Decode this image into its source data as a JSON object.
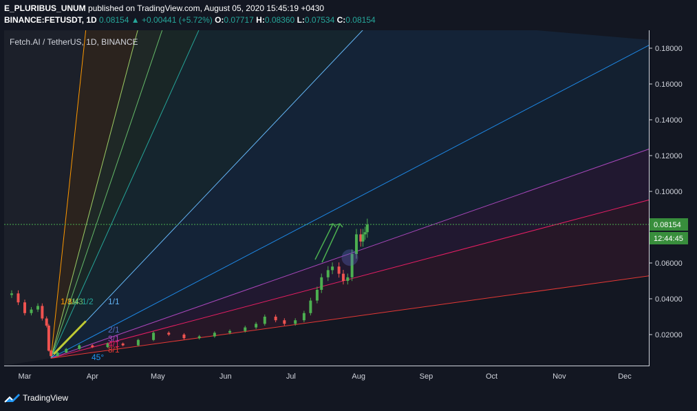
{
  "header": {
    "author": "E_PLURIBUS_UNUM",
    "published_text": "published on TradingView.com, August 05, 2020 15:45:19 +0430",
    "symbol": "BINANCE:FETUSDT, 1D",
    "last": "0.08154",
    "change": "+0.00441 (+5.72%)",
    "change_arrow": "▲",
    "o_label": "O:",
    "o": "0.07717",
    "h_label": "H:",
    "h": "0.08360",
    "l_label": "L:",
    "l": "0.07534",
    "c_label": "C:",
    "c": "0.08154"
  },
  "chart_label": "Fetch.AI / TetherUS, 1D, BINANCE",
  "price_tag": {
    "price": "0.08154",
    "countdown": "12:44:45"
  },
  "footer": {
    "brand": "TradingView"
  },
  "colors": {
    "background": "#131722",
    "up": "#26a69a",
    "candle_up": "#4caf50",
    "candle_down": "#ef5350",
    "price_tag": "#388e3c"
  },
  "chart_data": {
    "type": "candlestick",
    "title": "Fetch.AI / TetherUS, 1D, BINANCE",
    "xlabel": "",
    "ylabel": "",
    "x_ticks": [
      "Mar",
      "Apr",
      "May",
      "Jun",
      "Jul",
      "Aug",
      "Sep",
      "Oct",
      "Nov",
      "Dec"
    ],
    "y_ticks": [
      "0.02000",
      "0.04000",
      "0.06000",
      "0.08000",
      "0.10000",
      "0.12000",
      "0.14000",
      "0.16000",
      "0.18000"
    ],
    "ylim": [
      0,
      0.188
    ],
    "last_price": 0.08154,
    "grid": false,
    "gann_fan": {
      "origin": {
        "date": "2020-03-13",
        "price": 0.0068
      },
      "labels": [
        "1/8",
        "1/4",
        "1/3",
        "1/2",
        "1/1",
        "2/1",
        "3/1",
        "4/1",
        "8/1"
      ],
      "angle_label": "45°"
    },
    "series": [
      {
        "values": [
          {
            "date": "2020-02-24",
            "close": 0.043
          },
          {
            "date": "2020-02-27",
            "close": 0.038
          },
          {
            "date": "2020-03-01",
            "close": 0.032
          },
          {
            "date": "2020-03-04",
            "close": 0.034
          },
          {
            "date": "2020-03-07",
            "close": 0.036
          },
          {
            "date": "2020-03-09",
            "close": 0.029
          },
          {
            "date": "2020-03-11",
            "close": 0.025
          },
          {
            "date": "2020-03-12",
            "close": 0.011
          },
          {
            "date": "2020-03-13",
            "close": 0.008
          },
          {
            "date": "2020-03-16",
            "close": 0.01
          },
          {
            "date": "2020-03-20",
            "close": 0.012
          },
          {
            "date": "2020-03-26",
            "close": 0.014
          },
          {
            "date": "2020-04-01",
            "close": 0.013
          },
          {
            "date": "2020-04-08",
            "close": 0.015
          },
          {
            "date": "2020-04-15",
            "close": 0.014
          },
          {
            "date": "2020-04-22",
            "close": 0.017
          },
          {
            "date": "2020-04-29",
            "close": 0.021
          },
          {
            "date": "2020-05-06",
            "close": 0.02
          },
          {
            "date": "2020-05-13",
            "close": 0.018
          },
          {
            "date": "2020-05-20",
            "close": 0.019
          },
          {
            "date": "2020-05-27",
            "close": 0.021
          },
          {
            "date": "2020-06-03",
            "close": 0.022
          },
          {
            "date": "2020-06-10",
            "close": 0.024
          },
          {
            "date": "2020-06-15",
            "close": 0.026
          },
          {
            "date": "2020-06-19",
            "close": 0.03
          },
          {
            "date": "2020-06-24",
            "close": 0.028
          },
          {
            "date": "2020-06-28",
            "close": 0.026
          },
          {
            "date": "2020-07-03",
            "close": 0.028
          },
          {
            "date": "2020-07-07",
            "close": 0.032
          },
          {
            "date": "2020-07-10",
            "close": 0.039
          },
          {
            "date": "2020-07-13",
            "close": 0.045
          },
          {
            "date": "2020-07-15",
            "close": 0.052
          },
          {
            "date": "2020-07-18",
            "close": 0.056
          },
          {
            "date": "2020-07-20",
            "close": 0.058
          },
          {
            "date": "2020-07-23",
            "close": 0.054
          },
          {
            "date": "2020-07-25",
            "close": 0.05
          },
          {
            "date": "2020-07-27",
            "close": 0.052
          },
          {
            "date": "2020-07-29",
            "close": 0.065
          },
          {
            "date": "2020-07-31",
            "close": 0.076
          },
          {
            "date": "2020-08-02",
            "close": 0.072
          },
          {
            "date": "2020-08-03",
            "close": 0.076
          },
          {
            "date": "2020-08-04",
            "close": 0.0772
          },
          {
            "date": "2020-08-05",
            "close": 0.0815
          }
        ]
      }
    ]
  }
}
